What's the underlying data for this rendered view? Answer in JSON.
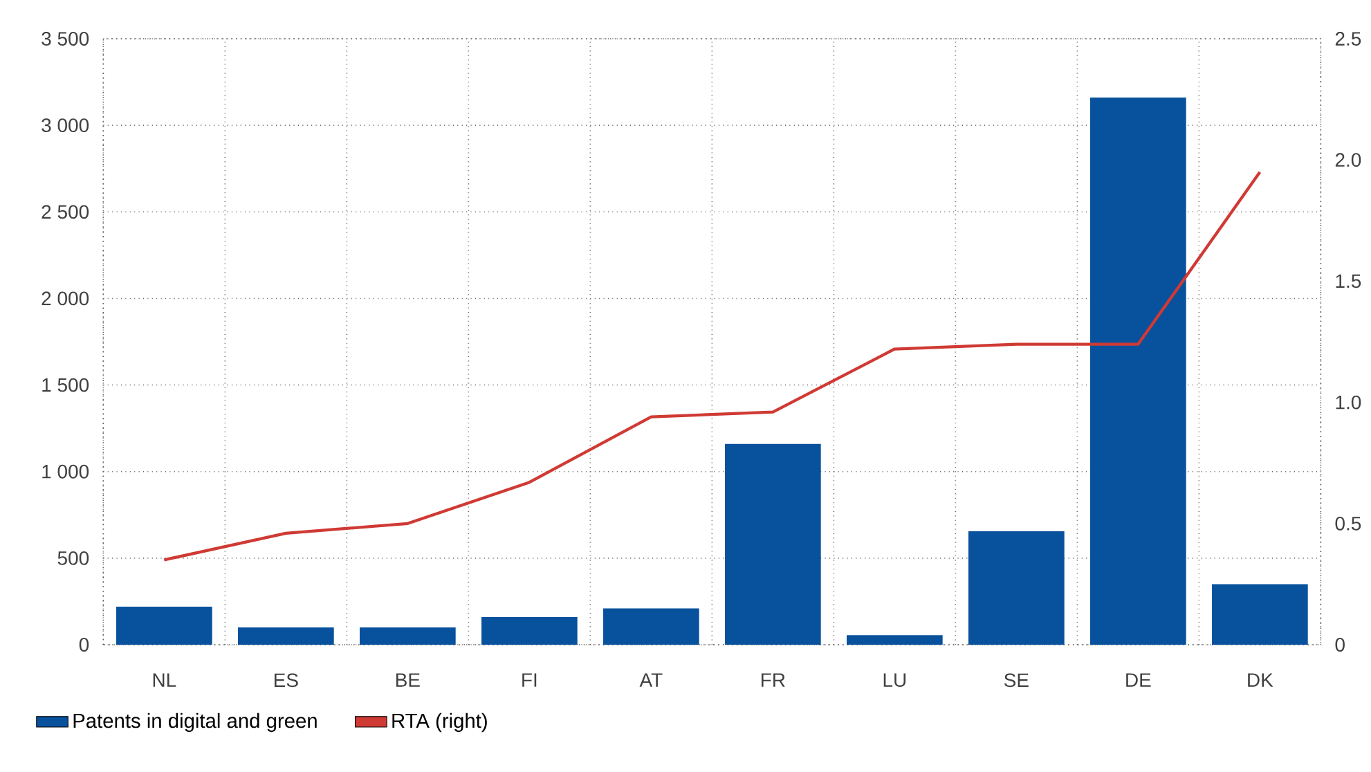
{
  "chart_data": {
    "type": "bar",
    "categories": [
      "NL",
      "ES",
      "BE",
      "FI",
      "AT",
      "FR",
      "LU",
      "SE",
      "DE",
      "DK"
    ],
    "series": [
      {
        "name": "Patents in digital and green",
        "color": "#08519c",
        "values": [
          220,
          100,
          100,
          160,
          210,
          1160,
          55,
          655,
          3160,
          350
        ]
      },
      {
        "name": "RTA (right)",
        "type": "line",
        "axis": "y2",
        "color": "#d03a34",
        "values": [
          0.35,
          0.46,
          0.5,
          0.67,
          0.94,
          0.96,
          1.22,
          1.24,
          1.24,
          1.95
        ]
      }
    ],
    "ylim": [
      0,
      3500
    ],
    "yticks": [
      0,
      500,
      {
        "value": 1000,
        "label": "1 000"
      },
      {
        "value": 1500,
        "label": "1 500"
      },
      {
        "value": 2000,
        "label": "2 000"
      },
      {
        "value": 2500,
        "label": "2 500"
      },
      {
        "value": 3000,
        "label": "3 000"
      },
      {
        "value": 3500,
        "label": "3 500"
      }
    ],
    "y2lim": [
      0,
      2.5
    ],
    "y2ticks": [
      0,
      0.5,
      {
        "value": 1,
        "label": "1.0"
      },
      1.5,
      {
        "value": 2,
        "label": "2.0"
      },
      2.5
    ],
    "grid": true,
    "legend": "bottom left"
  }
}
